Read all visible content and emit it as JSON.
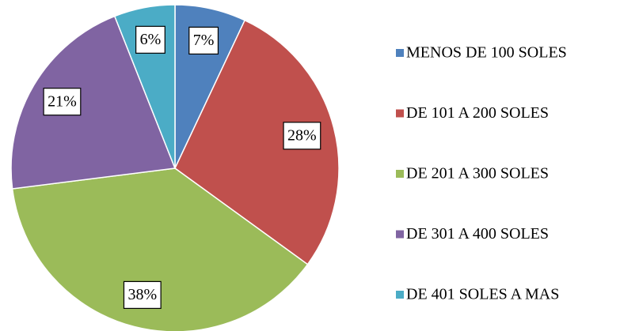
{
  "chart_data": {
    "type": "pie",
    "categories": [
      "MENOS DE 100 SOLES",
      "DE 101 A 200 SOLES",
      "DE 201 A 300 SOLES",
      "DE 301 A 400 SOLES",
      "DE 401 SOLES A MAS"
    ],
    "values": [
      7,
      28,
      38,
      21,
      6
    ],
    "value_labels": [
      "7%",
      "28%",
      "38%",
      "21%",
      "6%"
    ],
    "colors": [
      "#4f81bd",
      "#c0504d",
      "#9bbb59",
      "#8064a2",
      "#4bacc6"
    ],
    "legend": "right"
  }
}
